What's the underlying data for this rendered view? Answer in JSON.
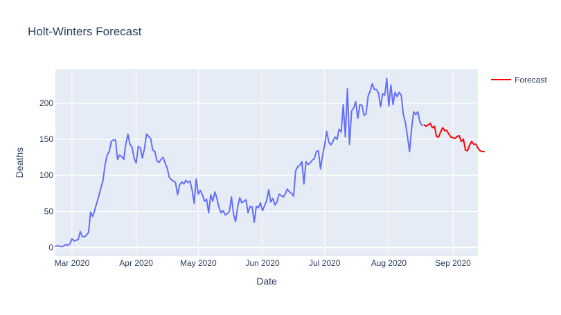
{
  "chart_data": {
    "type": "line",
    "title": "Holt-Winters Forecast",
    "xlabel": "Date",
    "ylabel": "Deaths",
    "x_ticks": [
      {
        "date": "2020-03-01",
        "label": "Mar 2020"
      },
      {
        "date": "2020-04-01",
        "label": "Apr 2020"
      },
      {
        "date": "2020-05-01",
        "label": "May 2020"
      },
      {
        "date": "2020-06-01",
        "label": "Jun 2020"
      },
      {
        "date": "2020-07-01",
        "label": "Jul 2020"
      },
      {
        "date": "2020-08-01",
        "label": "Aug 2020"
      },
      {
        "date": "2020-09-01",
        "label": "Sep 2020"
      }
    ],
    "y_ticks": [
      0,
      50,
      100,
      150,
      200
    ],
    "xlim": [
      "2020-02-22",
      "2020-09-13"
    ],
    "ylim": [
      -12,
      247
    ],
    "grid": true,
    "legend_placement": "top-right",
    "series": [
      {
        "color": "#636efa",
        "start": "2020-02-22",
        "values": [
          2,
          2,
          2,
          1,
          2,
          4,
          3,
          5,
          12,
          9,
          10,
          11,
          22,
          15,
          15,
          17,
          21,
          49,
          43,
          52,
          62,
          72,
          83,
          93,
          115,
          128,
          133,
          147,
          149,
          149,
          122,
          128,
          126,
          122,
          143,
          157,
          143,
          139,
          124,
          117,
          140,
          138,
          124,
          137,
          157,
          154,
          151,
          135,
          133,
          120,
          118,
          122,
          125,
          117,
          110,
          97,
          94,
          92,
          90,
          73,
          87,
          91,
          88,
          93,
          90,
          92,
          80,
          61,
          95,
          74,
          79,
          73,
          64,
          67,
          48,
          73,
          64,
          77,
          68,
          55,
          48,
          51,
          45,
          47,
          50,
          70,
          46,
          36,
          56,
          69,
          62,
          64,
          66,
          48,
          57,
          56,
          35,
          57,
          55,
          62,
          51,
          58,
          65,
          80,
          63,
          68,
          59,
          63,
          74,
          72,
          70,
          74,
          81,
          77,
          75,
          71,
          106,
          112,
          114,
          119,
          88,
          119,
          115,
          117,
          121,
          123,
          133,
          134,
          109,
          127,
          142,
          161,
          146,
          142,
          147,
          153,
          150,
          164,
          160,
          198,
          153,
          220,
          143,
          189,
          193,
          202,
          179,
          198,
          197,
          183,
          185,
          210,
          217,
          227,
          219,
          219,
          214,
          195,
          213,
          211,
          234,
          196,
          225,
          198,
          215,
          209,
          215,
          211,
          184,
          173,
          154,
          133,
          165,
          188,
          184,
          188,
          174,
          169
        ],
        "name": ""
      },
      {
        "name": "Forecast",
        "color": "#ff0000",
        "start": "2020-08-18",
        "values": [
          170,
          168,
          170,
          172,
          166,
          168,
          154,
          153,
          160,
          166,
          162,
          162,
          157,
          153,
          152,
          151,
          154,
          155,
          147,
          150,
          135,
          134,
          142,
          147,
          143,
          143,
          138,
          134,
          133,
          133
        ]
      }
    ]
  }
}
